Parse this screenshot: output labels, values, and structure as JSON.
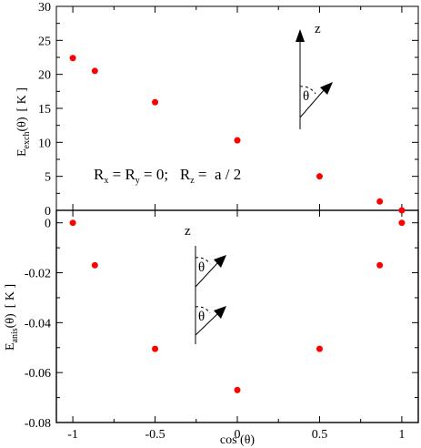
{
  "chart_data": [
    {
      "type": "scatter",
      "panel": "top",
      "ylabel_main": "E",
      "ylabel_sub": "exch",
      "ylabel_arg": "(θ)",
      "ylabel_unit": "[ K ]",
      "xlim": [
        -1.1,
        1.1
      ],
      "ylim": [
        0,
        30
      ],
      "yticks": [
        "0",
        "5",
        "10",
        "15",
        "20",
        "25",
        "30"
      ],
      "ytick_values": [
        0,
        5,
        10,
        15,
        20,
        25,
        30
      ],
      "marker_color": "#ff0000",
      "points": [
        {
          "x": -1.0,
          "y": 22.4
        },
        {
          "x": -0.866,
          "y": 20.5
        },
        {
          "x": -0.5,
          "y": 15.9
        },
        {
          "x": 0.0,
          "y": 10.3
        },
        {
          "x": 0.5,
          "y": 5.0
        },
        {
          "x": 0.866,
          "y": 1.3
        },
        {
          "x": 1.0,
          "y": 0.0
        }
      ],
      "annotation": {
        "rx": "R",
        "rx_sub": "x",
        "eq1": " = ",
        "ry": "R",
        "ry_sub": "y",
        "eq2": " = 0;   ",
        "rz": "R",
        "rz_sub": "z",
        "eq3": " =  a / 2"
      },
      "inset": {
        "axis": "z",
        "angle": "θ"
      }
    },
    {
      "type": "scatter",
      "panel": "bottom",
      "ylabel_main": "E",
      "ylabel_sub": "anis",
      "ylabel_arg": "(θ)",
      "ylabel_unit": "[ K ]",
      "xlabel": "cos (θ)",
      "xlim": [
        -1.1,
        1.1
      ],
      "ylim": [
        -0.08,
        0.005
      ],
      "xticks": [
        "-1",
        "-0.5",
        "0",
        "0.5",
        "1"
      ],
      "xtick_values": [
        -1,
        -0.5,
        0,
        0.5,
        1
      ],
      "yticks": [
        "0",
        "-0.02",
        "-0.04",
        "-0.06",
        "-0.08"
      ],
      "ytick_values": [
        0,
        -0.02,
        -0.04,
        -0.06,
        -0.08
      ],
      "marker_color": "#ff0000",
      "points": [
        {
          "x": -1.0,
          "y": 0.0
        },
        {
          "x": -0.866,
          "y": -0.017
        },
        {
          "x": -0.5,
          "y": -0.0505
        },
        {
          "x": 0.0,
          "y": -0.067
        },
        {
          "x": 0.5,
          "y": -0.0505
        },
        {
          "x": 0.866,
          "y": -0.017
        },
        {
          "x": 1.0,
          "y": 0.0
        }
      ],
      "inset": {
        "axis": "z",
        "angle1": "θ",
        "angle2": "θ"
      }
    }
  ]
}
